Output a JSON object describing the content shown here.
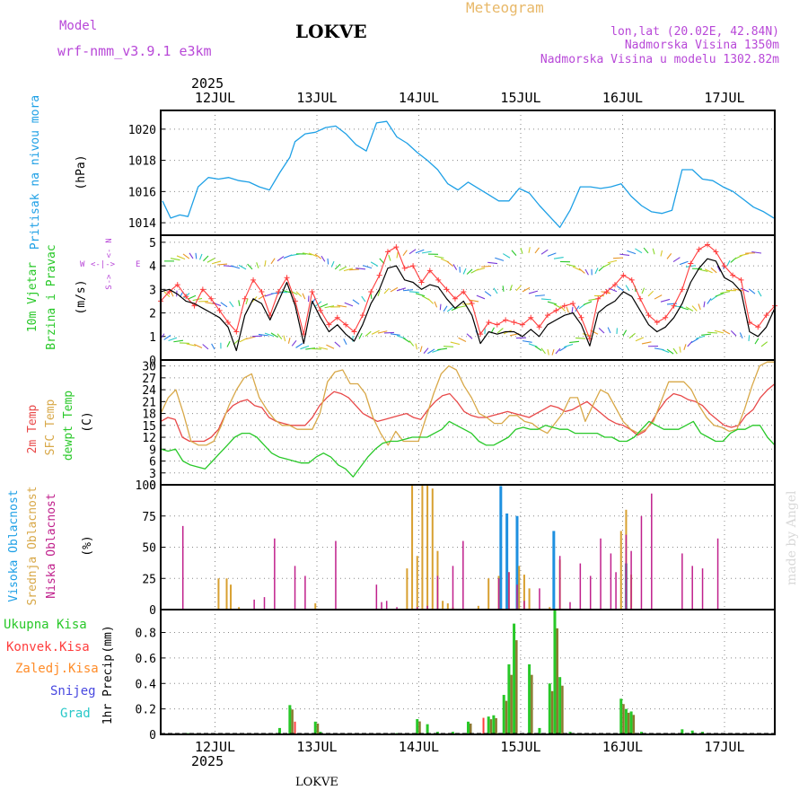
{
  "header": {
    "model_label": "Model",
    "model_name": "wrf-nmm_v3.9.1  e3km",
    "station": "LOKVE",
    "product": "Meteogram",
    "coords": "lon,lat (20.02E, 42.84N)",
    "altitude": "Nadmorska Visina 1350m",
    "model_altitude": "Nadmorska Visina u modelu 1302.82m",
    "year": "2025",
    "watermark": "made by Angel",
    "footer_station": "LOKVE"
  },
  "dates": [
    "12JUL",
    "13JUL",
    "14JUL",
    "15JUL",
    "16JUL",
    "17JUL"
  ],
  "colors": {
    "pressure": "#1ea0e6",
    "wind_speed": "#000000",
    "wind_gust": "#ff3c3c",
    "temp2m": "#e84848",
    "sfc_temp": "#d8a848",
    "dewpt": "#28c828",
    "cloud_high": "#1e90e0",
    "cloud_mid": "#d8a030",
    "cloud_low": "#c0208c",
    "precip_total": "#28c828",
    "precip_conv": "#ff3c3c",
    "precip_frozen": "#ff8c28",
    "snow": "#4848e0",
    "hail": "#28c8c8",
    "wind_legend": "#b848d8"
  },
  "chart_data": [
    {
      "type": "line",
      "panel": "pressure",
      "label": "Pritisak na nivou mora",
      "unit": "(hPa)",
      "ylim": [
        1013.2,
        1021.2
      ],
      "yticks": [
        1014,
        1016,
        1018,
        1020
      ],
      "x_days": [
        0,
        0.08,
        0.17,
        0.25,
        0.35,
        0.45,
        0.55,
        0.65,
        0.75,
        0.85,
        0.95,
        1.05,
        1.15,
        1.25,
        1.3,
        1.4,
        1.5,
        1.6,
        1.7,
        1.8,
        1.9,
        2.0,
        2.1,
        2.2,
        2.3,
        2.4,
        2.5,
        2.6,
        2.7,
        2.8,
        2.9,
        3.0,
        3.1,
        3.2,
        3.3,
        3.4,
        3.5,
        3.6,
        3.7,
        3.8,
        3.9,
        4.0,
        4.1,
        4.2,
        4.3,
        4.4,
        4.5,
        4.6,
        4.7,
        4.8,
        4.9,
        5.0,
        5.1,
        5.2,
        5.3,
        5.4,
        5.5,
        5.6,
        5.7,
        5.8,
        5.9,
        6.0
      ],
      "values": [
        1015.4,
        1014.3,
        1014.5,
        1014.4,
        1016.3,
        1016.9,
        1016.8,
        1016.9,
        1016.7,
        1016.6,
        1016.3,
        1016.1,
        1017.2,
        1018.2,
        1019.2,
        1019.7,
        1019.8,
        1020.1,
        1020.2,
        1019.7,
        1019.0,
        1018.6,
        1020.4,
        1020.5,
        1019.5,
        1019.1,
        1018.5,
        1018.0,
        1017.4,
        1016.5,
        1016.1,
        1016.6,
        1016.2,
        1015.8,
        1015.4,
        1015.4,
        1016.2,
        1015.9,
        1015.1,
        1014.4,
        1013.7,
        1014.8,
        1016.3,
        1016.3,
        1016.2,
        1016.3,
        1016.5,
        1015.7,
        1015.1,
        1014.7,
        1014.6,
        1014.8,
        1017.4,
        1017.4,
        1016.8,
        1016.7,
        1016.3,
        1016.0,
        1015.5,
        1015.0,
        1014.7,
        1014.3
      ]
    },
    {
      "type": "line",
      "panel": "wind",
      "label_line1": "10m Vjetar",
      "label_line2": "Brzina i Pravac",
      "unit": "(m/s)",
      "ylim": [
        0,
        5.3
      ],
      "yticks": [
        0,
        1,
        2,
        3,
        4,
        5
      ],
      "rose_labels": {
        "n": "N",
        "s": "S",
        "e": "E",
        "w": "W"
      },
      "series": [
        {
          "name": "speed",
          "values": [
            2.9,
            3.0,
            2.8,
            2.5,
            2.4,
            2.2,
            2.0,
            1.8,
            1.4,
            0.4,
            1.9,
            2.6,
            2.4,
            1.7,
            2.5,
            3.3,
            2.3,
            0.7,
            2.5,
            1.8,
            1.2,
            1.5,
            1.1,
            0.8,
            1.5,
            2.4,
            3.0,
            3.9,
            4.0,
            3.4,
            3.3,
            3.0,
            3.2,
            3.1,
            2.6,
            2.2,
            2.5,
            1.9,
            0.7,
            1.2,
            1.1,
            1.2,
            1.2,
            1.0,
            1.3,
            1.0,
            1.5,
            1.7,
            1.9,
            2.0,
            1.5,
            0.6,
            2.0,
            2.3,
            2.5,
            2.9,
            2.7,
            2.1,
            1.5,
            1.2,
            1.4,
            1.8,
            2.4,
            3.3,
            3.9,
            4.3,
            4.2,
            3.5,
            3.3,
            2.9,
            1.2,
            1.0,
            1.4,
            2.2
          ]
        },
        {
          "name": "gust",
          "values": [
            2.5,
            2.9,
            3.2,
            2.7,
            2.3,
            3.0,
            2.6,
            2.1,
            1.6,
            1.2,
            2.6,
            3.4,
            2.9,
            1.9,
            2.9,
            3.5,
            2.5,
            1.1,
            2.9,
            2.1,
            1.5,
            1.8,
            1.5,
            1.2,
            1.9,
            2.9,
            3.6,
            4.6,
            4.8,
            3.9,
            4.0,
            3.3,
            3.8,
            3.4,
            3.0,
            2.6,
            2.9,
            2.4,
            1.1,
            1.6,
            1.5,
            1.7,
            1.6,
            1.5,
            1.8,
            1.4,
            1.9,
            2.1,
            2.3,
            2.4,
            1.8,
            0.9,
            2.6,
            2.9,
            3.2,
            3.6,
            3.4,
            2.6,
            1.9,
            1.6,
            1.8,
            2.3,
            3.0,
            4.1,
            4.7,
            4.9,
            4.6,
            4.0,
            3.6,
            3.4,
            1.6,
            1.4,
            1.9,
            2.3
          ]
        }
      ]
    },
    {
      "type": "line",
      "panel": "temperature",
      "label_2m": "2m Temp",
      "label_sfc": "SFC Temp",
      "label_dewpt": "dewpt Temp",
      "unit": "(C)",
      "ylim": [
        0,
        31.5
      ],
      "yticks": [
        0,
        3,
        6,
        9,
        12,
        15,
        18,
        21,
        24,
        27,
        30
      ],
      "series": [
        {
          "name": "2m Temp",
          "values": [
            16,
            17,
            16.5,
            12,
            11,
            11,
            11,
            12,
            14,
            18,
            20,
            21,
            21.5,
            20,
            19.5,
            17,
            16,
            15.5,
            15,
            15,
            15,
            17,
            20,
            22,
            23.5,
            23,
            22,
            20,
            18,
            17,
            16,
            16.5,
            17,
            17.5,
            18,
            17,
            16.5,
            19,
            21,
            22.5,
            23,
            21,
            18.5,
            17.5,
            17,
            17,
            17.5,
            18,
            18.5,
            18,
            17.5,
            17,
            18,
            19,
            20,
            19.5,
            18.5,
            19,
            20,
            21,
            19.5,
            18,
            16.5,
            15.5,
            15,
            14,
            12.5,
            13.5,
            16,
            19,
            21.5,
            23,
            22.5,
            21.5,
            21,
            20,
            18,
            16.5,
            15,
            14.5,
            15,
            17.5,
            19,
            22,
            24,
            25.5
          ]
        },
        {
          "name": "SFC Temp",
          "values": [
            18,
            22,
            24,
            18,
            11,
            10,
            10,
            11,
            15,
            20,
            24,
            27,
            28,
            22,
            19,
            16.5,
            15,
            15,
            14,
            14,
            14,
            18,
            26,
            28.5,
            29,
            25.5,
            25.5,
            23,
            17,
            13,
            10,
            13.5,
            11,
            11,
            11,
            17,
            23,
            28,
            30,
            29,
            25,
            22,
            18,
            17,
            15.5,
            15.5,
            17.5,
            17.5,
            16,
            15.5,
            14,
            13,
            15.5,
            18,
            22,
            22,
            16,
            20,
            24,
            23,
            19.5,
            16,
            14,
            13,
            14,
            16,
            21,
            26,
            26,
            26,
            24,
            20,
            17,
            15,
            14.5,
            13.5,
            14,
            19,
            25,
            30,
            31,
            31
          ]
        },
        {
          "name": "dewpt Temp",
          "values": [
            9,
            8.5,
            9,
            6,
            5,
            4.5,
            4,
            6,
            8,
            10,
            12,
            13,
            13,
            12,
            10,
            8,
            7,
            6.5,
            6,
            5.5,
            5.5,
            7,
            8,
            7,
            5,
            4,
            2,
            4.5,
            7,
            9,
            10.5,
            11,
            11,
            11.5,
            12,
            12,
            12,
            13,
            14,
            16,
            15,
            14,
            13,
            11,
            10,
            10,
            11,
            12,
            14,
            14.5,
            14,
            14,
            15,
            14.5,
            14,
            14,
            13,
            13,
            13,
            13,
            12,
            12,
            11,
            11,
            12,
            14,
            16,
            15,
            14,
            14,
            14,
            15,
            16,
            13,
            12,
            11,
            11,
            13,
            14,
            14,
            15,
            15,
            12,
            10
          ]
        }
      ]
    },
    {
      "type": "bar",
      "panel": "clouds",
      "label_high": "Visoka Oblacnost",
      "label_mid": "Srednja Oblacnost",
      "label_low": "Niska Oblacnost",
      "unit": "(%)",
      "ylim": [
        0,
        100
      ],
      "yticks": [
        0,
        25,
        50,
        75,
        100
      ],
      "series": [
        {
          "name": "Visoka Oblacnost",
          "x_days": [
            3.32,
            3.38,
            3.48,
            3.84,
            4.55
          ],
          "values": [
            99,
            77,
            75,
            63,
            37
          ]
        },
        {
          "name": "Srednja Oblacnost",
          "x_days": [
            0.55,
            0.63,
            0.67,
            0.75,
            1.5,
            2.4,
            2.45,
            2.5,
            2.55,
            2.6,
            2.65,
            2.7,
            2.75,
            2.8,
            2.85,
            3.1,
            3.2,
            3.3,
            3.4,
            3.5,
            3.55,
            3.6,
            3.8,
            3.9,
            4.5,
            4.55,
            4.6
          ],
          "values": [
            25,
            25,
            20,
            2,
            5,
            33,
            100,
            43,
            100,
            100,
            97,
            47,
            7,
            5,
            2,
            3,
            25,
            27,
            30,
            35,
            28,
            17,
            2,
            40,
            63,
            80,
            28
          ]
        },
        {
          "name": "Niska Oblacnost",
          "x_days": [
            0.2,
            0.9,
            1.0,
            1.1,
            1.3,
            1.4,
            1.7,
            2.1,
            2.15,
            2.2,
            2.3,
            2.5,
            2.6,
            2.7,
            2.85,
            2.95,
            3.3,
            3.4,
            3.48,
            3.55,
            3.7,
            3.9,
            4.0,
            4.1,
            4.2,
            4.3,
            4.4,
            4.45,
            4.55,
            4.6,
            4.7,
            4.8,
            5.1,
            5.2,
            5.3,
            5.45
          ],
          "values": [
            67,
            8,
            10,
            57,
            35,
            27,
            55,
            20,
            6,
            7,
            2,
            2,
            3,
            27,
            35,
            55,
            25,
            30,
            20,
            7,
            17,
            43,
            6,
            37,
            27,
            57,
            45,
            30,
            60,
            47,
            75,
            93,
            45,
            35,
            33,
            57
          ]
        }
      ]
    },
    {
      "type": "bar",
      "panel": "precipitation",
      "label": "1hr Precip",
      "unit": "(mm)",
      "legend": [
        "Ukupna  Kisa",
        "Konvek.Kisa",
        "Zaledj.Kisa",
        "Snijeg",
        "Grad"
      ],
      "ylim": [
        0,
        0.98
      ],
      "yticks": [
        0,
        0.2,
        0.4,
        0.6,
        0.8
      ],
      "series": [
        {
          "name": "Ukupna Kisa",
          "x_days": [
            0.25,
            1.15,
            1.25,
            1.5,
            1.55,
            2.3,
            2.5,
            2.6,
            2.7,
            2.85,
            3.0,
            3.2,
            3.25,
            3.3,
            3.35,
            3.4,
            3.45,
            3.6,
            3.7,
            3.8,
            3.85,
            3.9,
            4.0,
            4.1,
            4.5,
            4.55,
            4.6,
            4.7,
            4.8,
            5.0,
            5.1,
            5.2,
            5.3
          ],
          "values": [
            0.01,
            0.05,
            0.23,
            0.1,
            0.02,
            0.01,
            0.12,
            0.08,
            0.02,
            0.02,
            0.1,
            0.14,
            0.15,
            0.01,
            0.31,
            0.55,
            0.87,
            0.55,
            0.05,
            0.4,
            0.98,
            0.45,
            0.02,
            0.01,
            0.28,
            0.2,
            0.18,
            0.02,
            0.01,
            0.01,
            0.04,
            0.03,
            0.02
          ]
        },
        {
          "name": "Konvek.Kisa",
          "x_days": [
            1.3,
            3.15
          ],
          "values": [
            0.1,
            0.13
          ]
        }
      ]
    }
  ]
}
